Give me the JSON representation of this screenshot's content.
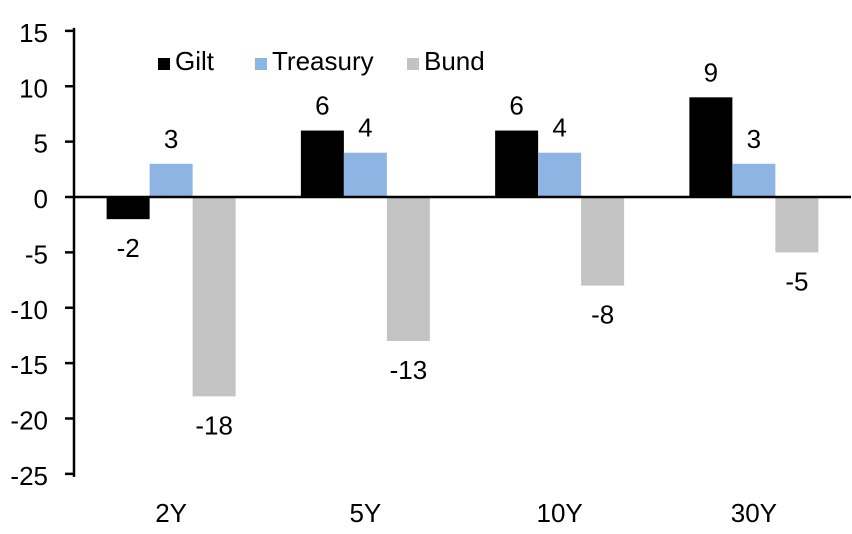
{
  "chart_data": {
    "type": "bar",
    "categories": [
      "2Y",
      "5Y",
      "10Y",
      "30Y"
    ],
    "series": [
      {
        "name": "Gilt",
        "color": "#000000",
        "values": [
          -2,
          6,
          6,
          9
        ]
      },
      {
        "name": "Treasury",
        "color": "#8DB4E2",
        "values": [
          3,
          4,
          4,
          3
        ]
      },
      {
        "name": "Bund",
        "color": "#C3C3C3",
        "values": [
          -18,
          -13,
          -8,
          -5
        ]
      }
    ],
    "yticks": [
      15,
      10,
      5,
      0,
      -5,
      -10,
      -15,
      -20,
      -25
    ],
    "ylim": [
      -25,
      15
    ],
    "grid": false,
    "data_labels": true,
    "legend_position": "top",
    "axis_color": "#000000",
    "background": "#FFFFFF"
  }
}
